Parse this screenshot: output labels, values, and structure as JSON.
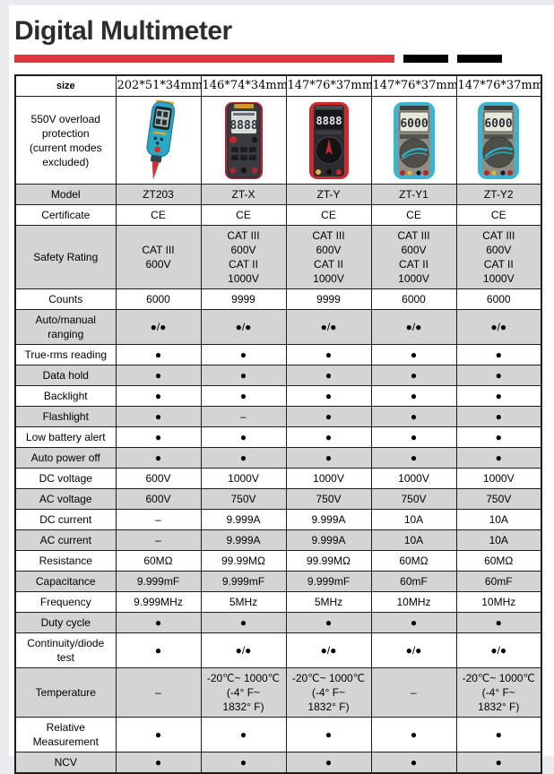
{
  "title": "Digital Multimeter",
  "colors": {
    "accent_red": "#e23340",
    "bar_black": "#000000",
    "shaded_row": "#d4d4d4",
    "border": "#1d1d1d"
  },
  "table": {
    "header_row": {
      "label": "size",
      "values": [
        "202*51*34mm",
        "146*74*34mm",
        "147*76*37mm",
        "147*76*37mm",
        "147*76*37mm"
      ]
    },
    "image_row": {
      "label": "550V overload\nprotection\n(current modes\nexcluded)",
      "product_images": [
        {
          "icon": "pen-type-multimeter",
          "lcd": ""
        },
        {
          "icon": "black-handheld-multimeter",
          "lcd": "8888"
        },
        {
          "icon": "red-dial-multimeter",
          "lcd": "8888"
        },
        {
          "icon": "teal-dial-multimeter",
          "lcd": "6000"
        },
        {
          "icon": "teal-dial-multimeter",
          "lcd": "6000"
        }
      ]
    },
    "rows": [
      {
        "label": "Model",
        "shaded": true,
        "values": [
          "ZT203",
          "ZT-X",
          "ZT-Y",
          "ZT-Y1",
          "ZT-Y2"
        ]
      },
      {
        "label": "Certificate",
        "shaded": false,
        "values": [
          "CE",
          "CE",
          "CE",
          "CE",
          "CE"
        ]
      },
      {
        "label": "Safety Rating",
        "shaded": true,
        "values": [
          "CAT III\n600V",
          "CAT III\n600V\nCAT II\n1000V",
          "CAT III\n600V\nCAT II\n1000V",
          "CAT III\n600V\nCAT II\n1000V",
          "CAT III\n600V\nCAT II\n1000V"
        ]
      },
      {
        "label": "Counts",
        "shaded": false,
        "values": [
          "6000",
          "9999",
          "9999",
          "6000",
          "6000"
        ]
      },
      {
        "label": "Auto/manual ranging",
        "shaded": true,
        "values": [
          "●/●",
          "●/●",
          "●/●",
          "●/●",
          "●/●"
        ]
      },
      {
        "label": "True-rms reading",
        "shaded": false,
        "values": [
          "●",
          "●",
          "●",
          "●",
          "●"
        ]
      },
      {
        "label": "Data hold",
        "shaded": true,
        "values": [
          "●",
          "●",
          "●",
          "●",
          "●"
        ]
      },
      {
        "label": "Backlight",
        "shaded": false,
        "values": [
          "●",
          "●",
          "●",
          "●",
          "●"
        ]
      },
      {
        "label": "Flashlight",
        "shaded": true,
        "values": [
          "●",
          "–",
          "●",
          "●",
          "●"
        ]
      },
      {
        "label": "Low battery alert",
        "shaded": false,
        "values": [
          "●",
          "●",
          "●",
          "●",
          "●"
        ]
      },
      {
        "label": "Auto power off",
        "shaded": true,
        "values": [
          "●",
          "●",
          "●",
          "●",
          "●"
        ]
      },
      {
        "label": "DC voltage",
        "shaded": false,
        "values": [
          "600V",
          "1000V",
          "1000V",
          "1000V",
          "1000V"
        ]
      },
      {
        "label": "AC voltage",
        "shaded": true,
        "values": [
          "600V",
          "750V",
          "750V",
          "750V",
          "750V"
        ]
      },
      {
        "label": "DC current",
        "shaded": false,
        "values": [
          "–",
          "9.999A",
          "9.999A",
          "10A",
          "10A"
        ]
      },
      {
        "label": "AC current",
        "shaded": true,
        "values": [
          "–",
          "9.999A",
          "9.999A",
          "10A",
          "10A"
        ]
      },
      {
        "label": "Resistance",
        "shaded": false,
        "values": [
          "60MΩ",
          "99.99MΩ",
          "99.99MΩ",
          "60MΩ",
          "60MΩ"
        ]
      },
      {
        "label": "Capacitance",
        "shaded": true,
        "values": [
          "9.999mF",
          "9.999mF",
          "9.999mF",
          "60mF",
          "60mF"
        ]
      },
      {
        "label": "Frequency",
        "shaded": false,
        "values": [
          "9.999MHz",
          "5MHz",
          "5MHz",
          "10MHz",
          "10MHz"
        ]
      },
      {
        "label": "Duty cycle",
        "shaded": true,
        "values": [
          "●",
          "●",
          "●",
          "●",
          "●"
        ]
      },
      {
        "label": "Continuity/diode test",
        "shaded": false,
        "values": [
          "●",
          "●/●",
          "●/●",
          "●/●",
          "●/●"
        ]
      },
      {
        "label": "Temperature",
        "shaded": true,
        "values": [
          "–",
          "-20℃~ 1000℃\n(-4° F~\n1832° F)",
          "-20℃~ 1000℃\n(-4° F~\n1832° F)",
          "–",
          "-20℃~ 1000℃\n(-4° F~\n1832° F)"
        ]
      },
      {
        "label": "Relative Measurement",
        "shaded": false,
        "values": [
          "●",
          "●",
          "●",
          "●",
          "●"
        ]
      },
      {
        "label": "NCV",
        "shaded": true,
        "values": [
          "●",
          "●",
          "●",
          "●",
          "●"
        ]
      }
    ]
  }
}
